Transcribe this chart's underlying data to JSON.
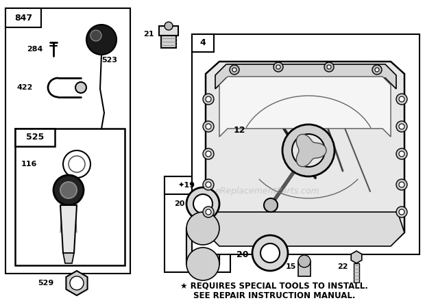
{
  "bg_color": "#ffffff",
  "footer_line1": "★ REQUIRES SPECIAL TOOLS TO INSTALL.",
  "footer_line2": "SEE REPAIR INSTRUCTION MANUAL.",
  "watermark": "eReplacementParts.com",
  "fig_w": 6.2,
  "fig_h": 4.46,
  "dpi": 100
}
